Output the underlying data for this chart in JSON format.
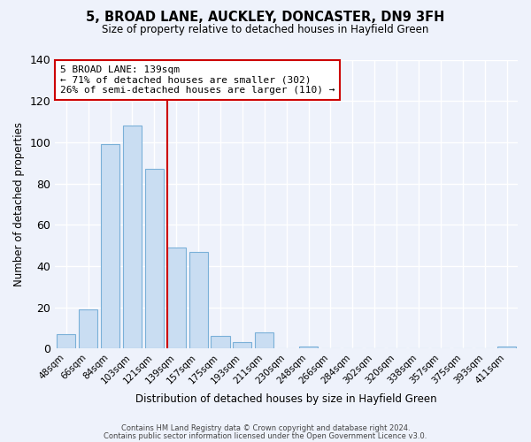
{
  "title": "5, BROAD LANE, AUCKLEY, DONCASTER, DN9 3FH",
  "subtitle": "Size of property relative to detached houses in Hayfield Green",
  "xlabel": "Distribution of detached houses by size in Hayfield Green",
  "ylabel": "Number of detached properties",
  "bar_labels": [
    "48sqm",
    "66sqm",
    "84sqm",
    "103sqm",
    "121sqm",
    "139sqm",
    "157sqm",
    "175sqm",
    "193sqm",
    "211sqm",
    "230sqm",
    "248sqm",
    "266sqm",
    "284sqm",
    "302sqm",
    "320sqm",
    "338sqm",
    "357sqm",
    "375sqm",
    "393sqm",
    "411sqm"
  ],
  "bar_heights": [
    7,
    19,
    99,
    108,
    87,
    49,
    47,
    6,
    3,
    8,
    0,
    1,
    0,
    0,
    0,
    0,
    0,
    0,
    0,
    0,
    1
  ],
  "bar_color": "#c9ddf2",
  "bar_edge_color": "#7ab0d8",
  "vline_color": "#cc0000",
  "annotation_text": "5 BROAD LANE: 139sqm\n← 71% of detached houses are smaller (302)\n26% of semi-detached houses are larger (110) →",
  "annotation_box_color": "#ffffff",
  "annotation_box_edge": "#cc0000",
  "ylim": [
    0,
    140
  ],
  "yticks": [
    0,
    20,
    40,
    60,
    80,
    100,
    120,
    140
  ],
  "background_color": "#eef2fb",
  "plot_bg_color": "#eef2fb",
  "grid_color": "#ffffff",
  "footer_line1": "Contains HM Land Registry data © Crown copyright and database right 2024.",
  "footer_line2": "Contains public sector information licensed under the Open Government Licence v3.0."
}
